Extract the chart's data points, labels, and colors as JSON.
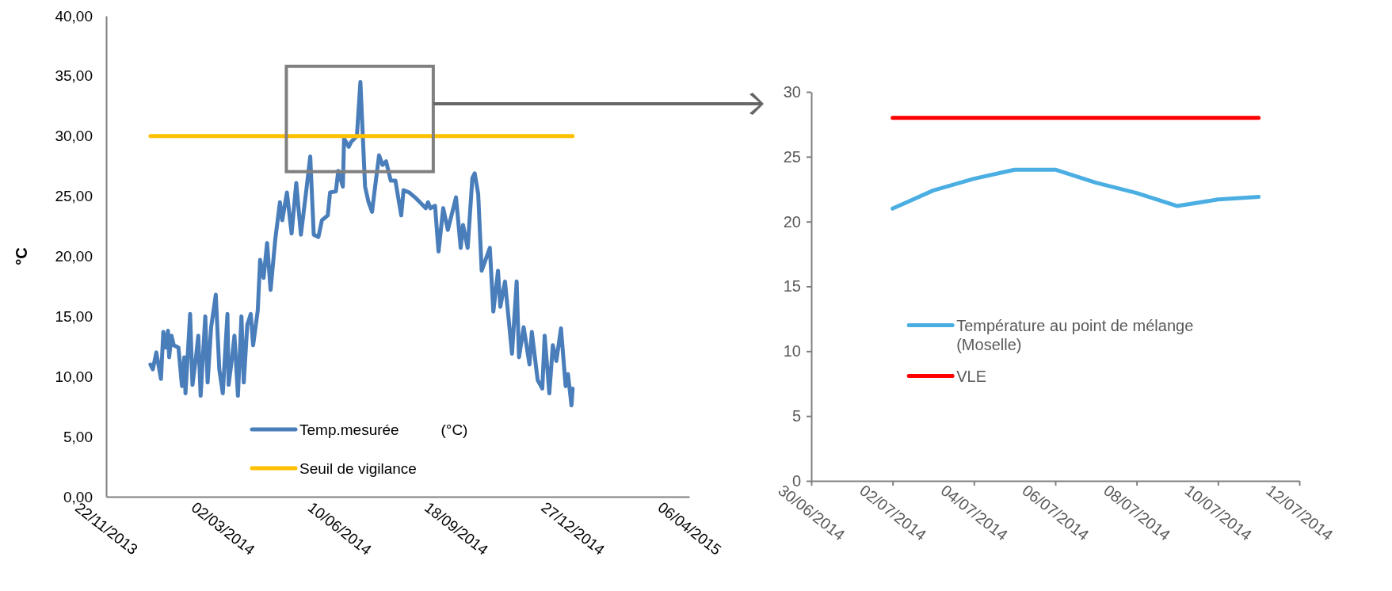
{
  "chart_data": [
    {
      "type": "line",
      "ylabel": "°C",
      "xlim": [
        "2013-11-22",
        "2015-04-06"
      ],
      "ylim": [
        0,
        40
      ],
      "xticks": [
        {
          "value": "2013-11-22",
          "label": "22/11/2013"
        },
        {
          "value": "2014-03-02",
          "label": "02/03/2014"
        },
        {
          "value": "2014-06-10",
          "label": "10/06/2014"
        },
        {
          "value": "2014-09-18",
          "label": "18/09/2014"
        },
        {
          "value": "2014-12-27",
          "label": "27/12/2014"
        },
        {
          "value": "2015-04-06",
          "label": "06/04/2015"
        }
      ],
      "yticks": [
        {
          "value": 0,
          "label": "0,00"
        },
        {
          "value": 5,
          "label": "5,00"
        },
        {
          "value": 10,
          "label": "10,00"
        },
        {
          "value": 15,
          "label": "15,00"
        },
        {
          "value": 20,
          "label": "20,00"
        },
        {
          "value": 25,
          "label": "25,00"
        },
        {
          "value": 30,
          "label": "30,00"
        },
        {
          "value": 35,
          "label": "35,00"
        },
        {
          "value": 40,
          "label": "40,00"
        }
      ],
      "legend": "bottom",
      "grid": false,
      "series": [
        {
          "name": "Temp.mesurée          (°C)",
          "color": "#4a7ebb",
          "x": [
            "2013-12-30",
            "2014-01-01",
            "2014-01-04",
            "2014-01-08",
            "2014-01-10",
            "2014-01-12",
            "2014-01-14",
            "2014-01-15",
            "2014-01-17",
            "2014-01-19",
            "2014-01-23",
            "2014-01-26",
            "2014-01-28",
            "2014-01-29",
            "2014-02-02",
            "2014-02-04",
            "2014-02-07",
            "2014-02-09",
            "2014-02-11",
            "2014-02-15",
            "2014-02-17",
            "2014-02-20",
            "2014-02-24",
            "2014-02-27",
            "2014-03-02",
            "2014-03-06",
            "2014-03-07",
            "2014-03-10",
            "2014-03-12",
            "2014-03-15",
            "2014-03-18",
            "2014-03-20",
            "2014-03-23",
            "2014-03-26",
            "2014-03-28",
            "2014-04-01",
            "2014-04-03",
            "2014-04-06",
            "2014-04-09",
            "2014-04-12",
            "2014-04-16",
            "2014-04-20",
            "2014-04-22",
            "2014-04-26",
            "2014-04-30",
            "2014-05-04",
            "2014-05-08",
            "2014-05-13",
            "2014-05-16",
            "2014-05-19",
            "2014-05-23",
            "2014-05-26",
            "2014-05-31",
            "2014-06-02",
            "2014-06-07",
            "2014-06-09",
            "2014-06-13",
            "2014-06-14",
            "2014-06-18",
            "2014-06-20",
            "2014-06-25",
            "2014-06-28",
            "2014-07-02",
            "2014-07-05",
            "2014-07-08",
            "2014-07-10",
            "2014-07-14",
            "2014-07-17",
            "2014-07-20",
            "2014-07-24",
            "2014-07-28",
            "2014-08-02",
            "2014-08-04",
            "2014-08-09",
            "2014-08-15",
            "2014-08-23",
            "2014-08-25",
            "2014-08-27",
            "2014-08-31",
            "2014-09-03",
            "2014-09-07",
            "2014-09-11",
            "2014-09-18",
            "2014-09-22",
            "2014-09-24",
            "2014-09-28",
            "2014-10-02",
            "2014-10-04",
            "2014-10-07",
            "2014-10-10",
            "2014-10-17",
            "2014-10-20",
            "2014-10-24",
            "2014-10-26",
            "2014-10-30",
            "2014-11-05",
            "2014-11-09",
            "2014-11-11",
            "2014-11-15",
            "2014-11-20",
            "2014-11-22",
            "2014-11-27",
            "2014-12-01",
            "2014-12-03",
            "2014-12-07",
            "2014-12-10",
            "2014-12-13",
            "2014-12-17",
            "2014-12-21",
            "2014-12-23",
            "2014-12-26",
            "2014-12-27"
          ],
          "values": [
            11.0,
            10.6,
            12.0,
            9.8,
            13.7,
            12.4,
            13.8,
            11.6,
            13.4,
            12.6,
            12.4,
            9.2,
            11.6,
            8.6,
            15.2,
            9.3,
            11.6,
            13.4,
            8.4,
            15.0,
            9.5,
            14.1,
            16.8,
            10.6,
            8.6,
            15.2,
            9.3,
            11.6,
            13.4,
            8.4,
            15.0,
            9.5,
            14.3,
            15.2,
            12.6,
            15.5,
            19.7,
            18.2,
            21.1,
            17.2,
            21.4,
            24.5,
            23.0,
            25.3,
            21.9,
            26.1,
            21.8,
            25.8,
            28.3,
            21.8,
            21.6,
            23.0,
            23.4,
            25.3,
            25.4,
            27.1,
            25.8,
            29.8,
            29.1,
            29.5,
            30.0,
            34.5,
            25.8,
            24.5,
            23.7,
            25.3,
            28.4,
            27.6,
            27.9,
            26.3,
            26.3,
            23.4,
            25.5,
            25.3,
            24.8,
            24.0,
            24.5,
            24.0,
            24.2,
            20.4,
            24.0,
            22.2,
            24.9,
            20.7,
            22.6,
            20.7,
            26.5,
            26.9,
            25.2,
            18.8,
            20.7,
            15.4,
            18.8,
            15.8,
            17.9,
            11.9,
            17.9,
            11.6,
            14.1,
            11.0,
            13.7,
            9.7,
            9.0,
            13.4,
            8.6,
            12.6,
            11.3,
            14.0,
            9.2,
            10.2,
            7.6,
            9.0
          ]
        },
        {
          "name": "Seuil de vigilance",
          "color": "#ffc000",
          "x": [
            "2013-12-30",
            "2014-12-27"
          ],
          "values": [
            30,
            30
          ]
        }
      ]
    },
    {
      "type": "line",
      "xlim": [
        "2014-06-30",
        "2014-07-12"
      ],
      "ylim": [
        0,
        30
      ],
      "xticks": [
        {
          "value": "2014-06-30",
          "label": "30/06/2014"
        },
        {
          "value": "2014-07-02",
          "label": "02/07/2014"
        },
        {
          "value": "2014-07-04",
          "label": "04/07/2014"
        },
        {
          "value": "2014-07-06",
          "label": "06/07/2014"
        },
        {
          "value": "2014-07-08",
          "label": "08/07/2014"
        },
        {
          "value": "2014-07-10",
          "label": "10/07/2014"
        },
        {
          "value": "2014-07-12",
          "label": "12/07/2014"
        }
      ],
      "yticks": [
        0,
        5,
        10,
        15,
        20,
        25,
        30
      ],
      "legend": "bottom left",
      "grid": false,
      "series": [
        {
          "name": "Température au point de mélange (Moselle)",
          "color": "#4aaee3",
          "x": [
            "2014-07-02",
            "2014-07-03",
            "2014-07-04",
            "2014-07-05",
            "2014-07-06",
            "2014-07-07",
            "2014-07-08",
            "2014-07-09",
            "2014-07-10",
            "2014-07-11"
          ],
          "values": [
            21.0,
            22.4,
            23.3,
            24.0,
            24.0,
            23.0,
            22.2,
            21.2,
            21.7,
            21.9
          ]
        },
        {
          "name": "VLE",
          "color": "#ff0000",
          "x": [
            "2014-07-02",
            "2014-07-11"
          ],
          "values": [
            28,
            28
          ]
        }
      ]
    }
  ]
}
